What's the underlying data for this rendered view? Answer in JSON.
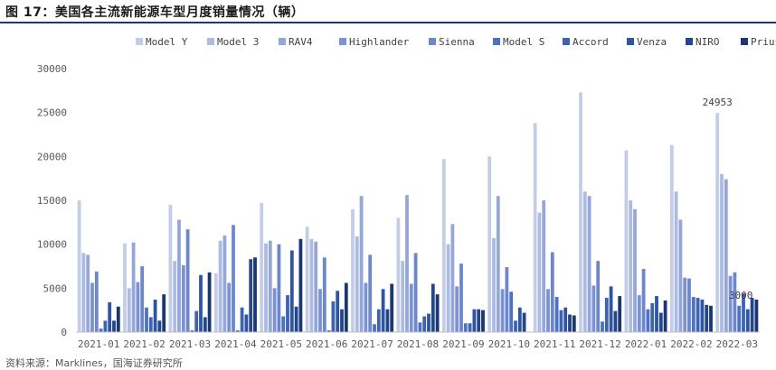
{
  "title": "图 17：美国各主流新能源车型月度销量情况（辆）",
  "source": "资料来源：Marklines，国海证券研究所",
  "colors": {
    "series": [
      "#c4cde6",
      "#aebbe0",
      "#94a7d8",
      "#7c92d2",
      "#6d87cb",
      "#4d72c2",
      "#3e63b0",
      "#2f559f",
      "#24468a",
      "#1a3772"
    ],
    "axis": "#595959",
    "grid": "#d9d9d9"
  },
  "chart_data": {
    "type": "bar",
    "title": "",
    "xlabel": "",
    "ylabel": "",
    "ylim": [
      0,
      30000
    ],
    "yticks": [
      "0",
      "5000",
      "10000",
      "15000",
      "20000",
      "25000",
      "30000"
    ],
    "grid": false,
    "legend_position": "top",
    "categories": [
      "2021-01",
      "2021-02",
      "2021-03",
      "2021-04",
      "2021-05",
      "2021-06",
      "2021-07",
      "2021-08",
      "2021-09",
      "2021-10",
      "2021-11",
      "2021-12",
      "2022-01",
      "2022-02",
      "2022-03"
    ],
    "series": [
      {
        "name": "Model Y",
        "values": [
          15000,
          10100,
          14500,
          6700,
          14700,
          12000,
          14000,
          13000,
          19700,
          20000,
          23800,
          27300,
          20700,
          21300,
          24953
        ]
      },
      {
        "name": "Model 3",
        "values": [
          9000,
          5000,
          8100,
          10400,
          10100,
          10600,
          10900,
          8100,
          10000,
          10700,
          13600,
          16000,
          15000,
          16000,
          18000
        ]
      },
      {
        "name": "RAV4",
        "values": [
          8800,
          10200,
          12800,
          11000,
          10400,
          10300,
          15500,
          15600,
          12300,
          15500,
          15000,
          15500,
          14000,
          12800,
          17400
        ]
      },
      {
        "name": "Highlander",
        "values": [
          5600,
          5700,
          7600,
          5600,
          5000,
          4900,
          5600,
          5500,
          5200,
          4900,
          4900,
          5300,
          4200,
          6200,
          6400
        ]
      },
      {
        "name": "Sienna",
        "values": [
          6900,
          7500,
          11700,
          12200,
          10000,
          8500,
          8800,
          9000,
          7800,
          7400,
          9100,
          8100,
          7200,
          6100,
          6800
        ]
      },
      {
        "name": "Model S",
        "values": [
          400,
          2800,
          200,
          200,
          1800,
          200,
          900,
          1100,
          1000,
          4600,
          4000,
          1200,
          2600,
          4000,
          3000
        ]
      },
      {
        "name": "Accord",
        "values": [
          1300,
          1700,
          2400,
          2800,
          4200,
          3500,
          2600,
          1800,
          1000,
          1300,
          2500,
          3900,
          3300,
          3900,
          4400
        ]
      },
      {
        "name": "Venza",
        "values": [
          3400,
          3700,
          6500,
          2000,
          9300,
          4700,
          4900,
          2100,
          2600,
          2800,
          2800,
          5200,
          4100,
          3700,
          2600
        ]
      },
      {
        "name": "NIRO",
        "values": [
          1300,
          1300,
          1700,
          8300,
          2900,
          2600,
          2600,
          5500,
          2600,
          2200,
          2000,
          2400,
          2200,
          3100,
          3900
        ]
      },
      {
        "name": "Prius",
        "values": [
          2900,
          4300,
          6800,
          8500,
          10600,
          5600,
          5500,
          4300,
          2500,
          0,
          1900,
          4100,
          3600,
          3000,
          3700
        ]
      }
    ],
    "annotations": [
      {
        "text": "24953",
        "series": "Model Y",
        "category": "2022-03"
      },
      {
        "text": "3000",
        "series": "Model S",
        "category": "2022-03"
      }
    ]
  }
}
